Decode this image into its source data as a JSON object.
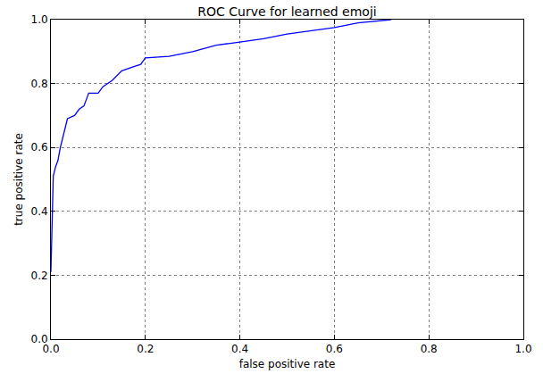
{
  "chart_data": {
    "type": "line",
    "title": "ROC Curve for learned emoji",
    "x_label": "false positive rate",
    "y_label": "true positive rate",
    "x": [
      0,
      0.003,
      0.005,
      0.01,
      0.015,
      0.02,
      0.025,
      0.03,
      0.035,
      0.05,
      0.06,
      0.07,
      0.08,
      0.1,
      0.11,
      0.13,
      0.15,
      0.17,
      0.19,
      0.2,
      0.25,
      0.3,
      0.35,
      0.4,
      0.45,
      0.5,
      0.55,
      0.6,
      0.65,
      0.72
    ],
    "values": [
      0.21,
      0.41,
      0.51,
      0.54,
      0.56,
      0.6,
      0.63,
      0.66,
      0.69,
      0.7,
      0.72,
      0.73,
      0.77,
      0.77,
      0.79,
      0.81,
      0.84,
      0.85,
      0.86,
      0.88,
      0.885,
      0.9,
      0.92,
      0.93,
      0.94,
      0.955,
      0.965,
      0.975,
      0.99,
      1.0
    ],
    "color": "#0000ff",
    "line_style": "solid",
    "xlim": [
      0,
      1
    ],
    "ylim": [
      0,
      1
    ],
    "xticks": [
      {
        "value": 0,
        "label": "0.0"
      },
      0.2,
      0.4,
      0.6,
      0.8,
      {
        "value": 1,
        "label": "1.0"
      }
    ],
    "yticks": [
      {
        "value": 0,
        "label": "0.0"
      },
      0.2,
      0.4,
      0.6,
      0.8,
      {
        "value": 1,
        "label": "1.0"
      }
    ],
    "grid": true
  }
}
